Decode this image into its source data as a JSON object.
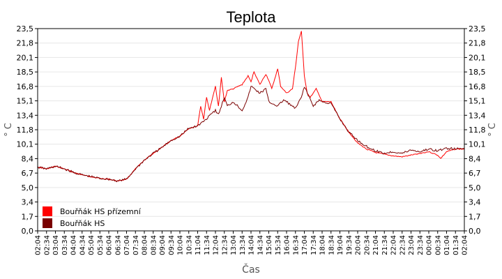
{
  "chart_data": {
    "type": "line",
    "title": "Teplota",
    "xlabel": "Čas",
    "ylabel_left": "° C",
    "ylabel_right": "° C",
    "ylim": [
      0,
      23.5
    ],
    "yticks": [
      "0,0",
      "1,7",
      "3,4",
      "5,0",
      "6,7",
      "8,4",
      "10,1",
      "11,8",
      "13,4",
      "15,1",
      "16,8",
      "18,5",
      "20,1",
      "21,8",
      "23,5"
    ],
    "xticks": [
      "02:04",
      "02:34",
      "03:04",
      "03:34",
      "04:04",
      "04:34",
      "05:04",
      "05:34",
      "06:04",
      "06:34",
      "07:04",
      "07:34",
      "08:04",
      "08:34",
      "09:04",
      "09:34",
      "10:04",
      "10:34",
      "11:04",
      "11:34",
      "12:04",
      "12:34",
      "13:04",
      "13:34",
      "14:04",
      "14:34",
      "15:04",
      "15:34",
      "16:04",
      "16:34",
      "17:04",
      "17:34",
      "18:04",
      "18:34",
      "19:04",
      "19:34",
      "20:04",
      "20:34",
      "21:04",
      "21:34",
      "22:04",
      "22:34",
      "23:04",
      "23:34",
      "00:04",
      "00:34",
      "01:04",
      "01:34",
      "02:04"
    ],
    "grid": true,
    "legend_position": "bottom-left",
    "series": [
      {
        "name": "Bouřňák HS přízemní",
        "color": "#ff0000",
        "x": [
          "02:04",
          "02:34",
          "03:04",
          "03:34",
          "04:04",
          "04:34",
          "05:04",
          "05:34",
          "06:04",
          "06:34",
          "07:04",
          "07:34",
          "08:04",
          "08:34",
          "09:04",
          "09:34",
          "10:04",
          "10:34",
          "11:04",
          "11:14",
          "11:24",
          "11:34",
          "11:44",
          "12:04",
          "12:14",
          "12:24",
          "12:34",
          "12:44",
          "13:04",
          "13:34",
          "13:54",
          "14:04",
          "14:14",
          "14:34",
          "14:54",
          "15:04",
          "15:14",
          "15:34",
          "15:44",
          "16:04",
          "16:24",
          "16:34",
          "16:44",
          "16:54",
          "17:04",
          "17:14",
          "17:24",
          "17:34",
          "17:44",
          "17:54",
          "18:04",
          "18:34",
          "19:04",
          "19:34",
          "20:04",
          "20:34",
          "21:04",
          "21:34",
          "22:04",
          "22:34",
          "23:04",
          "23:34",
          "00:04",
          "00:34",
          "00:44",
          "01:04",
          "01:34",
          "02:04"
        ],
        "values": [
          7.4,
          7.2,
          7.5,
          7.2,
          6.8,
          6.5,
          6.3,
          6.1,
          6.0,
          5.8,
          6.0,
          7.2,
          8.2,
          9.0,
          9.7,
          10.5,
          11.0,
          11.9,
          12.2,
          14.5,
          13.0,
          15.5,
          14.0,
          16.8,
          14.5,
          17.8,
          15.0,
          16.3,
          16.5,
          17.0,
          18.0,
          17.3,
          18.5,
          17.0,
          18.2,
          17.5,
          16.5,
          18.8,
          16.8,
          16.0,
          16.5,
          19.0,
          22.0,
          23.2,
          18.0,
          16.0,
          15.5,
          16.0,
          16.5,
          15.8,
          15.0,
          15.0,
          13.0,
          11.5,
          10.2,
          9.5,
          9.1,
          8.9,
          8.7,
          8.6,
          8.8,
          9.0,
          9.2,
          8.8,
          8.4,
          9.2,
          9.5,
          9.5
        ]
      },
      {
        "name": "Bouřňák HS",
        "color": "#7a0000",
        "x": [
          "02:04",
          "02:34",
          "03:04",
          "03:34",
          "04:04",
          "04:34",
          "05:04",
          "05:34",
          "06:04",
          "06:34",
          "07:04",
          "07:34",
          "08:04",
          "08:34",
          "09:04",
          "09:34",
          "10:04",
          "10:34",
          "11:04",
          "11:34",
          "11:44",
          "12:04",
          "12:14",
          "12:34",
          "12:44",
          "13:04",
          "13:34",
          "13:54",
          "14:04",
          "14:34",
          "14:54",
          "15:04",
          "15:34",
          "15:54",
          "16:04",
          "16:34",
          "16:54",
          "17:04",
          "17:14",
          "17:34",
          "17:54",
          "18:04",
          "18:34",
          "19:04",
          "19:34",
          "20:04",
          "20:34",
          "21:04",
          "21:34",
          "22:04",
          "22:34",
          "23:04",
          "23:34",
          "00:04",
          "00:34",
          "01:04",
          "01:34",
          "02:04"
        ],
        "values": [
          7.4,
          7.2,
          7.5,
          7.2,
          6.8,
          6.5,
          6.3,
          6.1,
          6.0,
          5.8,
          6.0,
          7.2,
          8.2,
          9.0,
          9.7,
          10.5,
          11.0,
          11.9,
          12.2,
          13.0,
          13.5,
          14.0,
          13.5,
          15.5,
          14.5,
          15.0,
          14.0,
          15.5,
          16.8,
          16.0,
          16.5,
          15.0,
          14.5,
          15.2,
          15.0,
          14.2,
          15.5,
          16.8,
          16.0,
          14.5,
          15.2,
          15.0,
          14.8,
          13.0,
          11.5,
          10.5,
          9.8,
          9.3,
          9.0,
          9.2,
          9.0,
          9.4,
          9.2,
          9.5,
          9.3,
          9.6,
          9.5,
          9.6
        ]
      }
    ]
  }
}
